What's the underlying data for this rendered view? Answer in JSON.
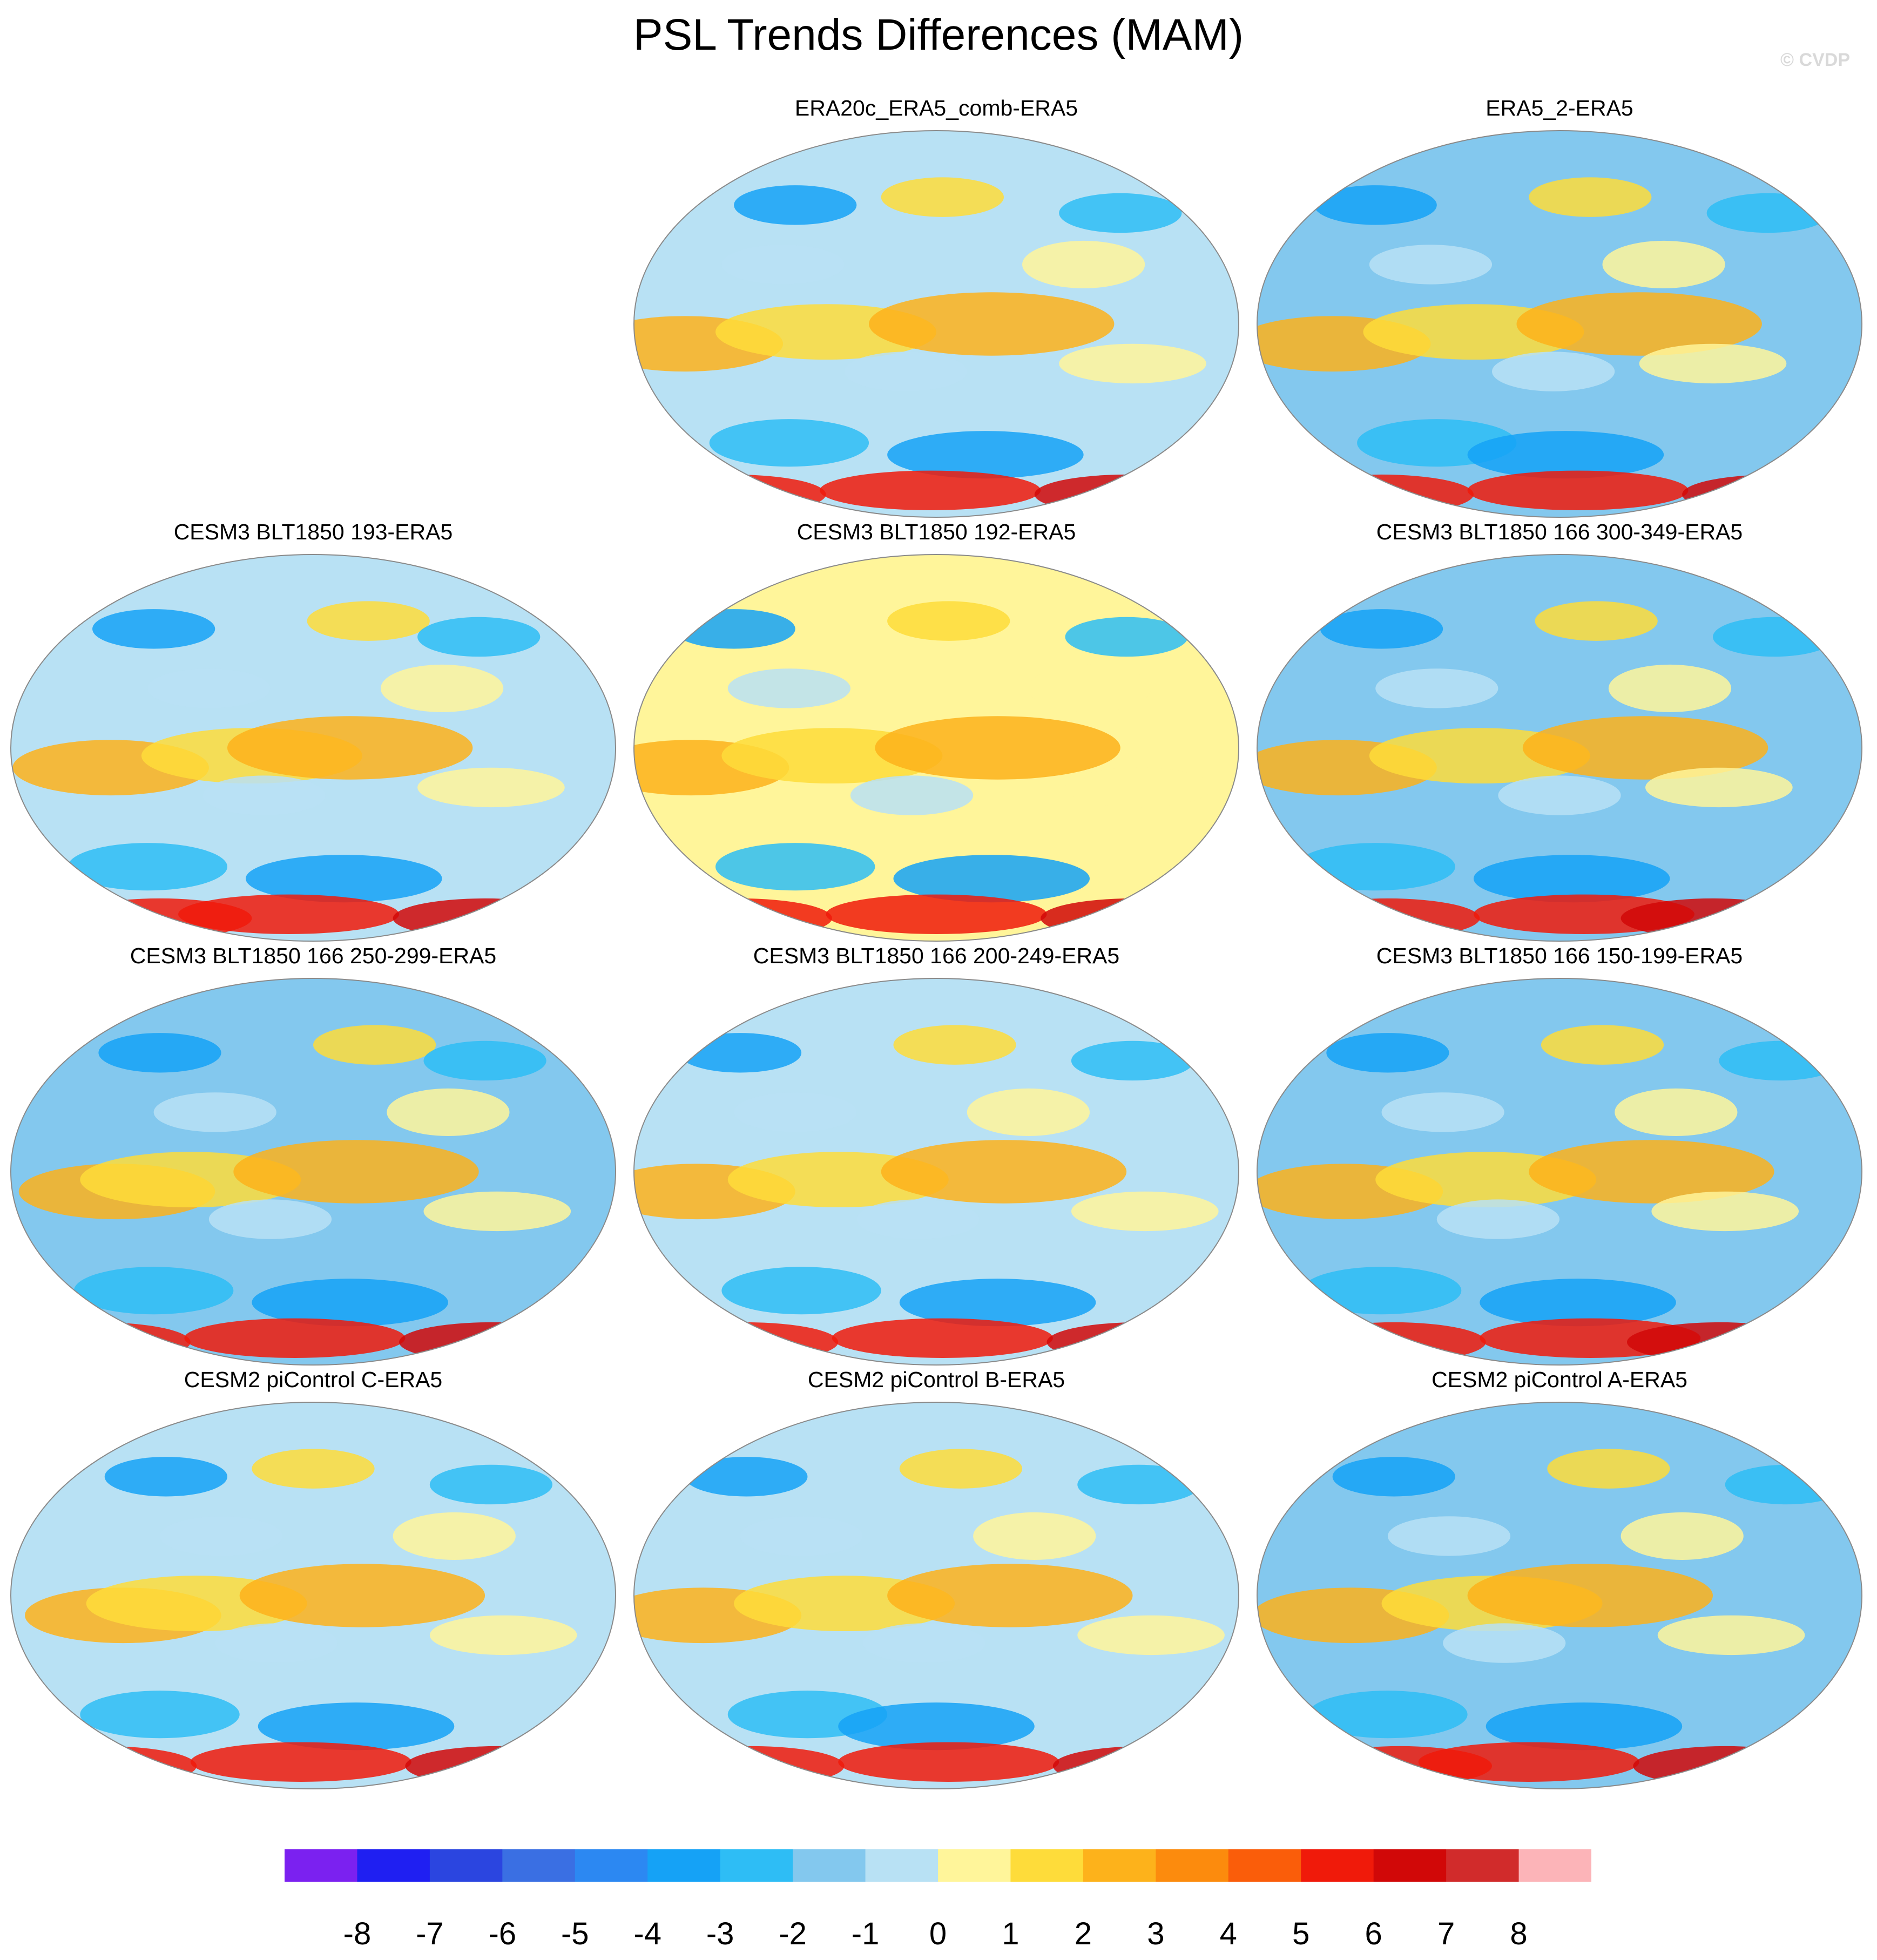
{
  "title": "PSL Trends Differences (MAM)",
  "credit": "© CVDP",
  "colorbar": {
    "colors": [
      "#7b21f0",
      "#1f1ff2",
      "#2b45e0",
      "#3a6fe3",
      "#2c88f2",
      "#15a2f6",
      "#2ebdf5",
      "#83c8ee",
      "#b8e1f4",
      "#fff59a",
      "#fedc3a",
      "#fdb21b",
      "#fc8b0d",
      "#fa5d0a",
      "#f01a0a",
      "#d10808",
      "#d12b2b",
      "#fcb4b8"
    ],
    "ticks": [
      "-8",
      "-7",
      "-6",
      "-5",
      "-4",
      "-3",
      "-2",
      "-1",
      "0",
      "1",
      "2",
      "3",
      "4",
      "5",
      "6",
      "7",
      "8"
    ]
  },
  "panels": [
    {
      "title": "ERA20c_ERA5_comb-ERA5"
    },
    {
      "title": "ERA5_2-ERA5"
    },
    {
      "title": "CESM3 BLT1850 193-ERA5"
    },
    {
      "title": "CESM3 BLT1850 192-ERA5"
    },
    {
      "title": "CESM3 BLT1850 166 300-349-ERA5"
    },
    {
      "title": "CESM3 BLT1850 166 250-299-ERA5"
    },
    {
      "title": "CESM3 BLT1850 166 200-249-ERA5"
    },
    {
      "title": "CESM3 BLT1850 166 150-199-ERA5"
    },
    {
      "title": "CESM2 piControl C-ERA5"
    },
    {
      "title": "CESM2 piControl B-ERA5"
    },
    {
      "title": "CESM2 piControl A-ERA5"
    }
  ]
}
